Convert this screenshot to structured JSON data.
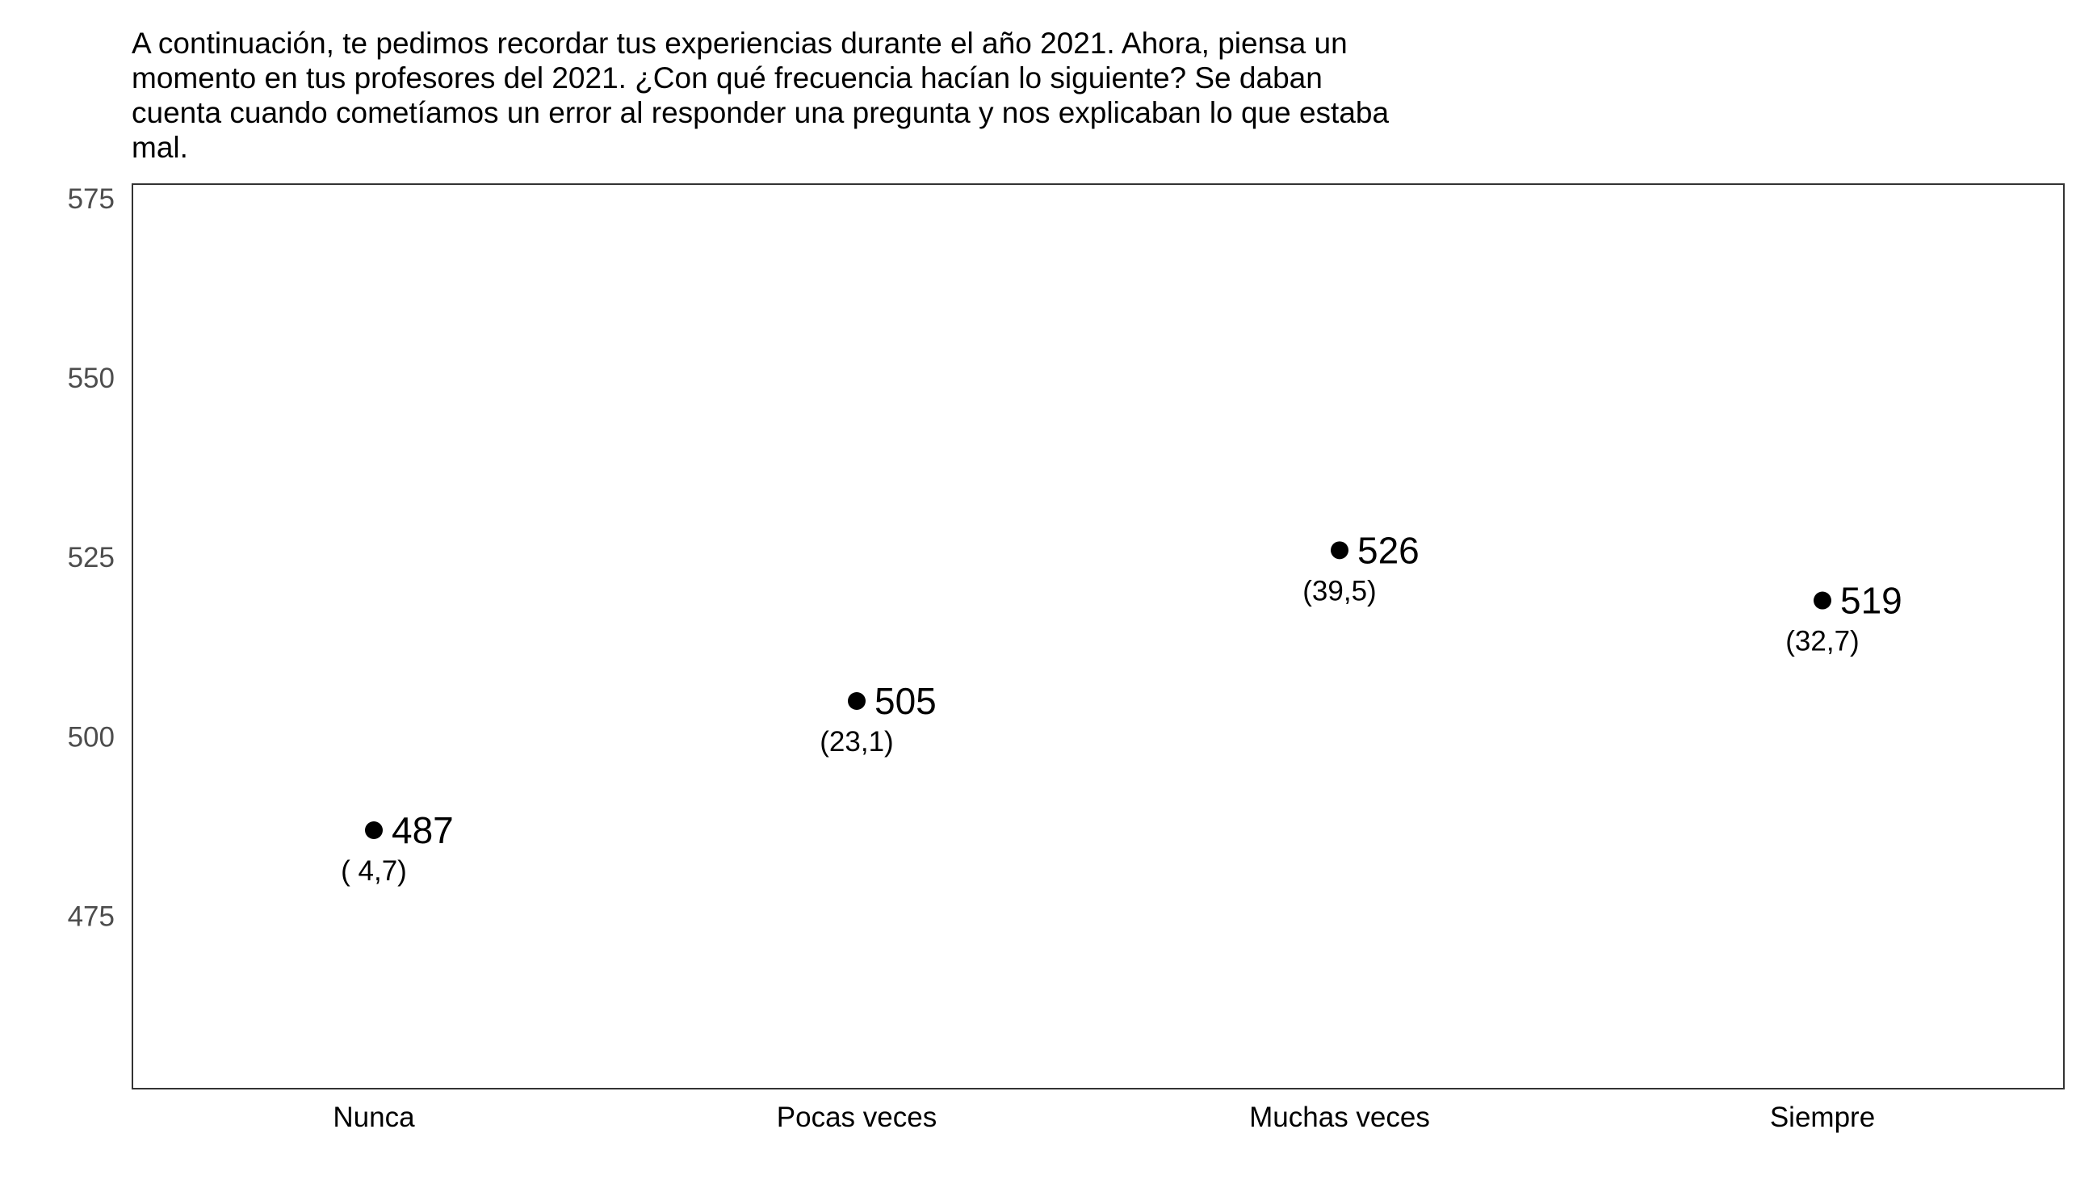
{
  "chart_data": {
    "type": "scatter",
    "title": "A continuación, te pedimos recordar tus experiencias durante el año 2021. Ahora, piensa un momento en tus profesores del 2021. ¿Con qué frecuencia hacían lo siguiente? Se daban cuenta cuando cometíamos un error al responder una pregunta y nos explicaban lo que estaba mal.",
    "xlabel": "",
    "ylabel": "",
    "categories": [
      "Nunca",
      "Pocas veces",
      "Muchas veces",
      "Siempre"
    ],
    "values": [
      487,
      505,
      526,
      519
    ],
    "value_labels": [
      "487",
      "505",
      "526",
      "519"
    ],
    "se_labels": [
      "( 4,7)",
      "(23,1)",
      "(39,5)",
      "(32,7)"
    ],
    "ylim": [
      451,
      577
    ],
    "yticks": [
      475,
      500,
      525,
      550,
      575
    ],
    "grid": false,
    "colors": {
      "point": "#000000",
      "panel_border": "#333333",
      "tick_label": "#4d4d4d"
    }
  }
}
